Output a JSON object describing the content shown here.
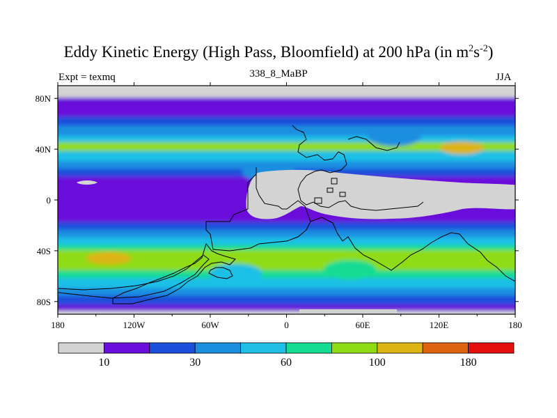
{
  "chart_data": {
    "type": "contour map",
    "title": "Eddy Kinetic Energy (High Pass, Bloomfield) at 200 hPa (in m",
    "title_unit_sup1": "2",
    "title_unit_mid": "s",
    "title_unit_sup2": "-2",
    "title_unit_end": ")",
    "subtitle": "338_8_MaBP",
    "left_label": "Expt = texmq",
    "right_label": "JJA",
    "x_range": [
      -180,
      180
    ],
    "y_range": [
      -90,
      90
    ],
    "x_ticks": [
      {
        "value": -180,
        "label": "180"
      },
      {
        "value": -120,
        "label": "120W"
      },
      {
        "value": -60,
        "label": "60W"
      },
      {
        "value": 0,
        "label": "0"
      },
      {
        "value": 60,
        "label": "60E"
      },
      {
        "value": 120,
        "label": "120E"
      },
      {
        "value": 180,
        "label": "180"
      }
    ],
    "y_ticks": [
      {
        "value": 80,
        "label": "80N"
      },
      {
        "value": 40,
        "label": "40N"
      },
      {
        "value": 0,
        "label": "0"
      },
      {
        "value": -40,
        "label": "40S"
      },
      {
        "value": -80,
        "label": "80S"
      }
    ],
    "colorbar": {
      "colors": [
        "#d3d3d3",
        "#6a0fdb",
        "#1c4fdb",
        "#1b8ee0",
        "#1fbfe6",
        "#14dc93",
        "#8fdc14",
        "#dcb414",
        "#e0640f",
        "#e60f0f"
      ],
      "labels": [
        {
          "after_box": 1,
          "text": "10"
        },
        {
          "after_box": 3,
          "text": "30"
        },
        {
          "after_box": 5,
          "text": "60"
        },
        {
          "after_box": 7,
          "text": "100"
        },
        {
          "after_box": 9,
          "text": "180"
        }
      ]
    },
    "zonal_structure": [
      {
        "lat_from": 90,
        "lat_to": 80,
        "level": 0
      },
      {
        "lat_from": 80,
        "lat_to": 65,
        "level": 1
      },
      {
        "lat_from": 65,
        "lat_to": 58,
        "level": 2
      },
      {
        "lat_from": 58,
        "lat_to": 50,
        "level": 3
      },
      {
        "lat_from": 50,
        "lat_to": 45,
        "level": 4
      },
      {
        "lat_from": 45,
        "lat_to": 38,
        "level": 6
      },
      {
        "lat_from": 38,
        "lat_to": 30,
        "level": 4
      },
      {
        "lat_from": 30,
        "lat_to": 24,
        "level": 3
      },
      {
        "lat_from": 24,
        "lat_to": 18,
        "level": 2
      },
      {
        "lat_from": 18,
        "lat_to": -18,
        "level": 1
      },
      {
        "lat_from": -18,
        "lat_to": -24,
        "level": 2
      },
      {
        "lat_from": -24,
        "lat_to": -30,
        "level": 3
      },
      {
        "lat_from": -30,
        "lat_to": -36,
        "level": 4
      },
      {
        "lat_from": -36,
        "lat_to": -40,
        "level": 5
      },
      {
        "lat_from": -40,
        "lat_to": -56,
        "level": 6
      },
      {
        "lat_from": -56,
        "lat_to": -62,
        "level": 5
      },
      {
        "lat_from": -62,
        "lat_to": -70,
        "level": 4
      },
      {
        "lat_from": -70,
        "lat_to": -76,
        "level": 3
      },
      {
        "lat_from": -76,
        "lat_to": -83,
        "level": 2
      },
      {
        "lat_from": -83,
        "lat_to": -88,
        "level": 1
      },
      {
        "lat_from": -88,
        "lat_to": -90,
        "level": 0
      }
    ],
    "maxima": [
      {
        "lon": 138,
        "lat": 41,
        "level": 7
      },
      {
        "lon": -140,
        "lat": -46,
        "level": 7
      }
    ],
    "low_regions": [
      {
        "lon": -14,
        "lat": 22,
        "level": 3
      },
      {
        "lon": 85,
        "lat": 50,
        "level": 3
      },
      {
        "lon": -40,
        "lat": -58,
        "level": 4
      },
      {
        "lon": 50,
        "lat": -55,
        "level": 5
      }
    ]
  }
}
